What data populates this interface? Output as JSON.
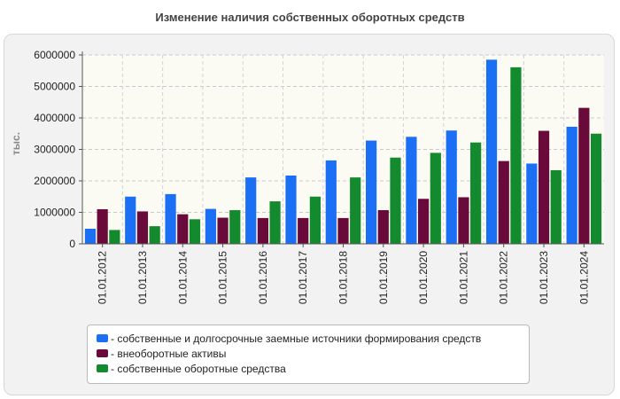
{
  "chart_data": {
    "type": "bar",
    "title": "Изменение наличия собственных оборотных средств",
    "ylabel": "тыс.",
    "xlabel": "",
    "ylim": [
      0,
      6000000
    ],
    "yticks": [
      0,
      1000000,
      2000000,
      3000000,
      4000000,
      5000000,
      6000000
    ],
    "ytick_labels": [
      "0",
      "1000000",
      "2000000",
      "3000000",
      "4000000",
      "5000000",
      "6000000"
    ],
    "grid": true,
    "legend_position": "bottom",
    "categories": [
      "01.01.2012",
      "01.01.2013",
      "01.01.2014",
      "01.01.2015",
      "01.01.2016",
      "01.01.2017",
      "01.01.2018",
      "01.01.2019",
      "01.01.2020",
      "01.01.2021",
      "01.01.2022",
      "01.01.2023",
      "01.01.2024"
    ],
    "series": [
      {
        "name": "собственные и долгосрочные заемные источники формирования средств",
        "color": "#1a6ff5",
        "values": [
          480000,
          1500000,
          1580000,
          1110000,
          2110000,
          2170000,
          2650000,
          3280000,
          3400000,
          3600000,
          5850000,
          2550000,
          3720000
        ]
      },
      {
        "name": "внеоборотные активы",
        "color": "#6a0a3a",
        "values": [
          1100000,
          1030000,
          940000,
          830000,
          820000,
          820000,
          820000,
          1070000,
          1430000,
          1480000,
          2630000,
          3590000,
          4320000
        ]
      },
      {
        "name": "собственные оборотные средства",
        "color": "#138a2e",
        "values": [
          440000,
          560000,
          780000,
          1070000,
          1350000,
          1500000,
          2110000,
          2740000,
          2890000,
          3220000,
          5610000,
          2340000,
          3500000
        ]
      }
    ]
  }
}
